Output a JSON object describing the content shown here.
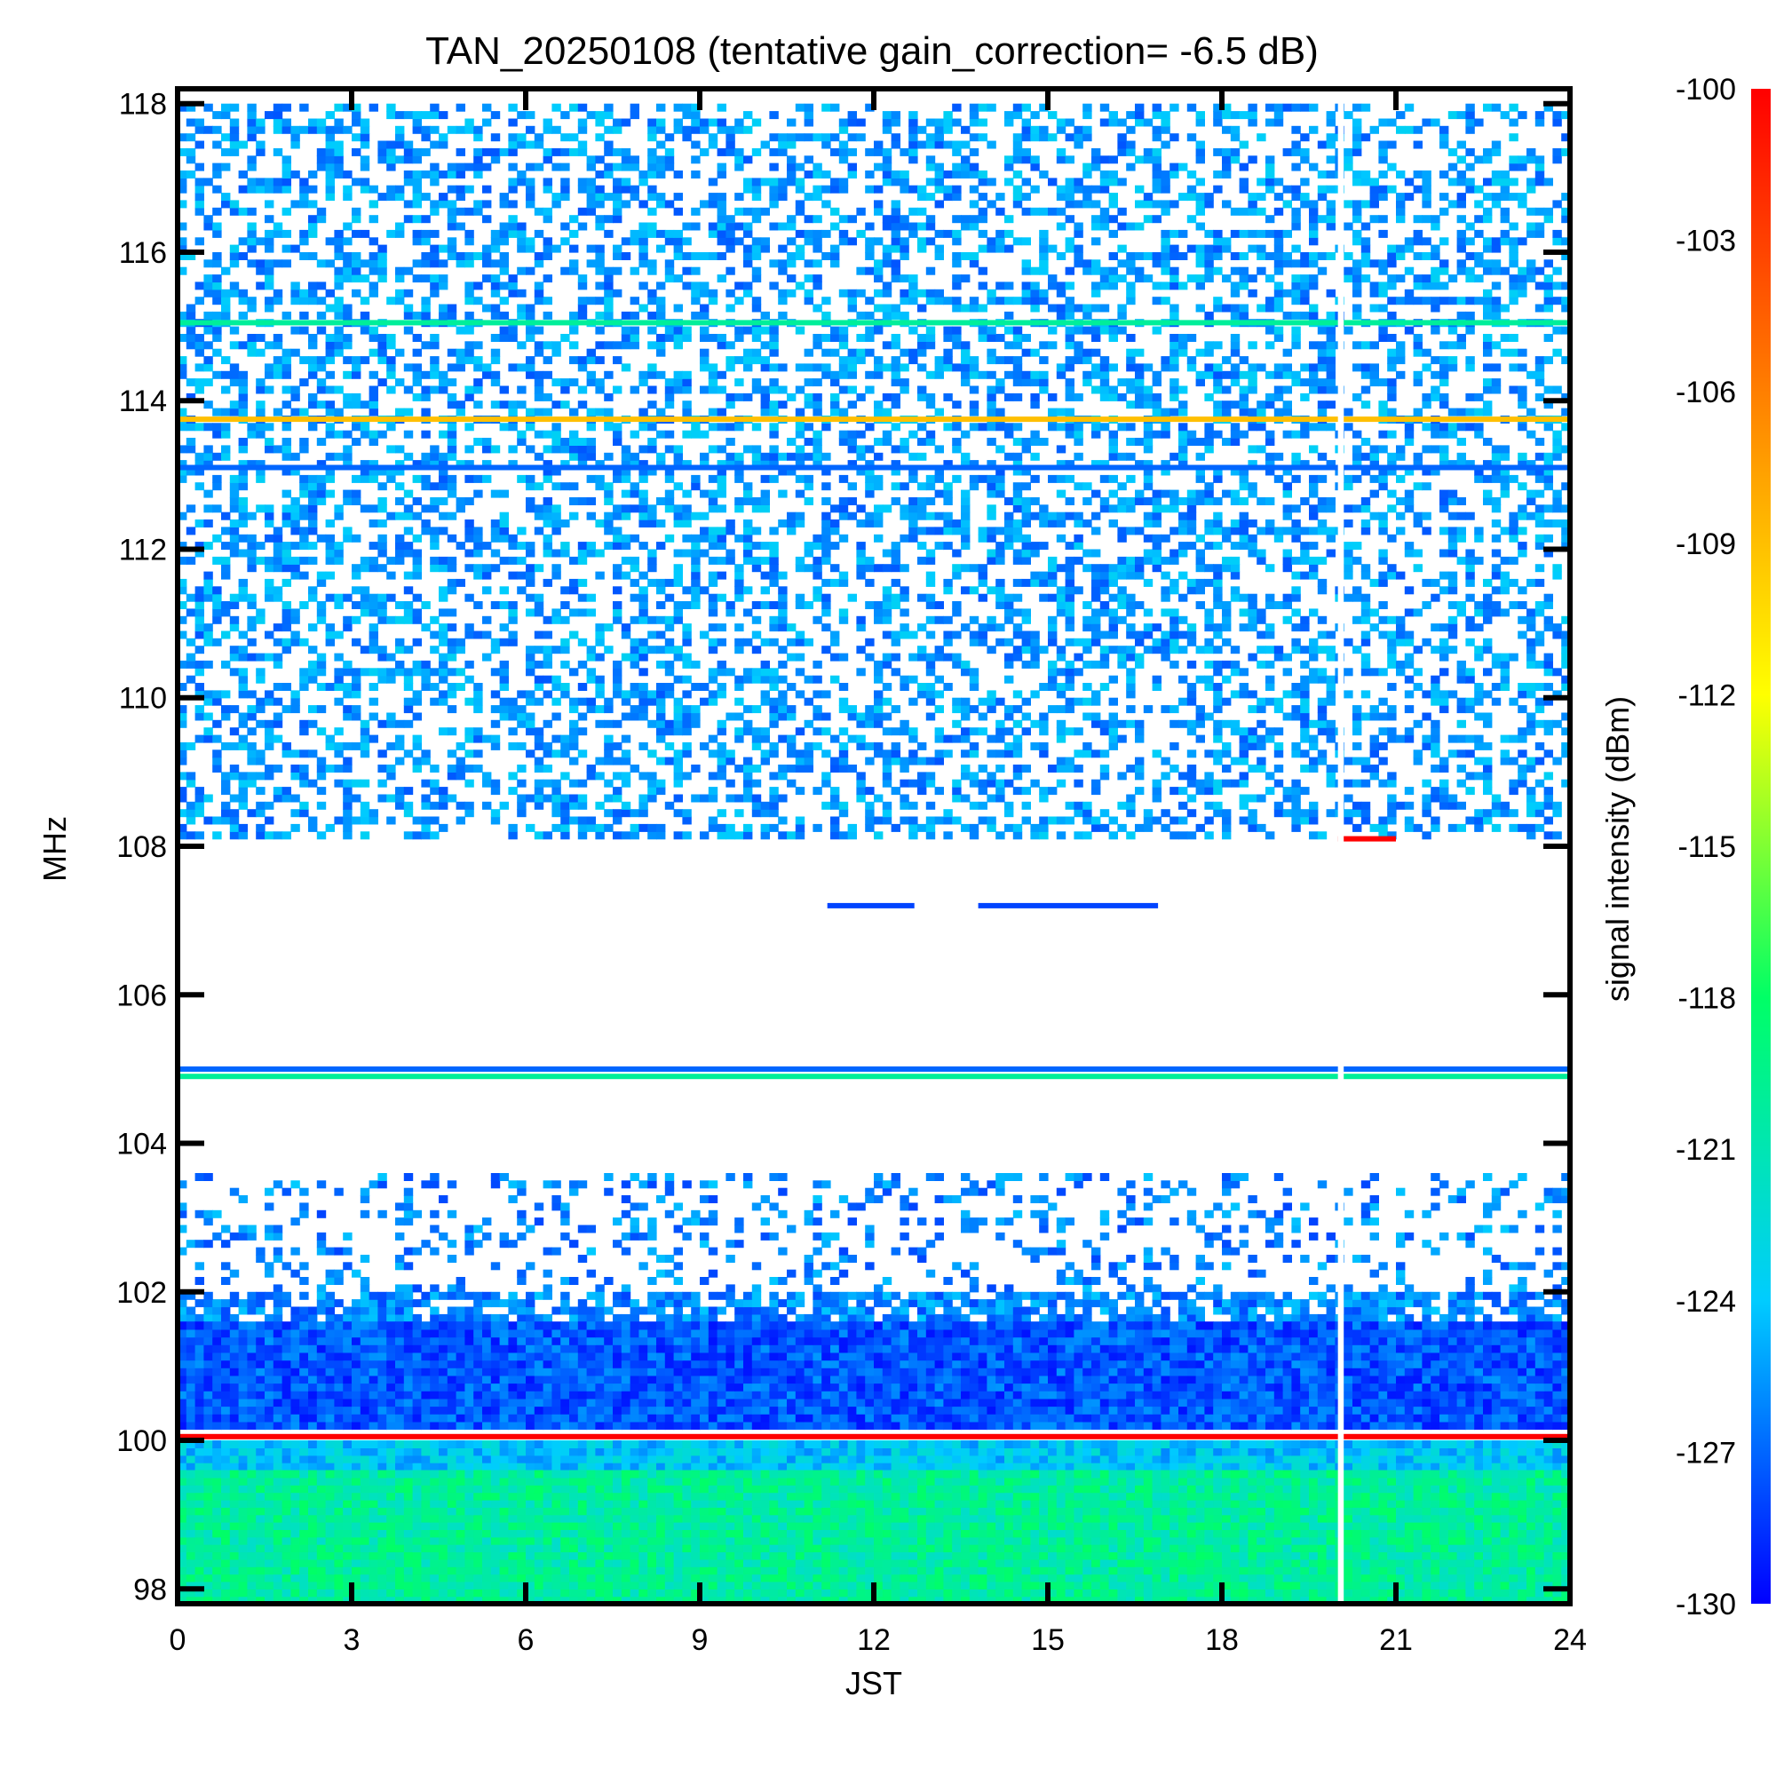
{
  "chart_data": {
    "type": "heatmap",
    "title": "TAN_20250108 (tentative gain_correction= -6.5 dB)",
    "xlabel": "JST",
    "ylabel": "MHz",
    "colorbar_label": "signal intensity (dBm)",
    "xlim": [
      0,
      24
    ],
    "ylim": [
      97.8,
      118.2
    ],
    "x_ticks": [
      "0",
      "3",
      "6",
      "9",
      "12",
      "15",
      "18",
      "21",
      "24"
    ],
    "y_ticks": [
      "98",
      "100",
      "102",
      "104",
      "106",
      "108",
      "110",
      "112",
      "114",
      "116",
      "118"
    ],
    "colorbar_ticks": [
      "-100",
      "-103",
      "-106",
      "-109",
      "-112",
      "-115",
      "-118",
      "-121",
      "-124",
      "-127",
      "-130"
    ],
    "colorbar_range": [
      -130,
      -100
    ],
    "colormap": [
      "#0000ff",
      "#00ccff",
      "#00ff66",
      "#ffff00",
      "#ff7f00",
      "#ff0000"
    ],
    "data_gap_jst": [
      20.0,
      20.1
    ],
    "regions": [
      {
        "f0": 108.1,
        "f1": 118.0,
        "kind": "sparse",
        "density": 0.42,
        "level": -125.5
      },
      {
        "f0": 102.0,
        "f1": 103.6,
        "kind": "sparse",
        "density": 0.22,
        "level": -126
      },
      {
        "f0": 101.6,
        "f1": 102.0,
        "kind": "sparse",
        "density": 0.7,
        "level": -126
      },
      {
        "f0": 100.15,
        "f1": 101.6,
        "kind": "dense",
        "level": -127.5
      },
      {
        "f0": 99.6,
        "f1": 100.0,
        "kind": "dense",
        "level": -124
      },
      {
        "f0": 97.8,
        "f1": 99.6,
        "kind": "dense",
        "level": -120
      }
    ],
    "lines": [
      {
        "freq": 113.75,
        "level": -109,
        "t0": 0,
        "t1": 24
      },
      {
        "freq": 115.05,
        "level": -120,
        "t0": 0,
        "t1": 24
      },
      {
        "freq": 113.1,
        "level": -127,
        "t0": 0,
        "t1": 24
      },
      {
        "freq": 105.0,
        "level": -127,
        "t0": 0,
        "t1": 24
      },
      {
        "freq": 104.9,
        "level": -120,
        "t0": 0,
        "t1": 24
      },
      {
        "freq": 100.05,
        "level": -100,
        "t0": 0,
        "t1": 24
      },
      {
        "freq": 107.2,
        "level": -128,
        "t0": 11.2,
        "t1": 12.7
      },
      {
        "freq": 107.2,
        "level": -128,
        "t0": 13.8,
        "t1": 16.9
      },
      {
        "freq": 108.1,
        "level": -100,
        "t0": 20.0,
        "t1": 21.0
      }
    ]
  }
}
